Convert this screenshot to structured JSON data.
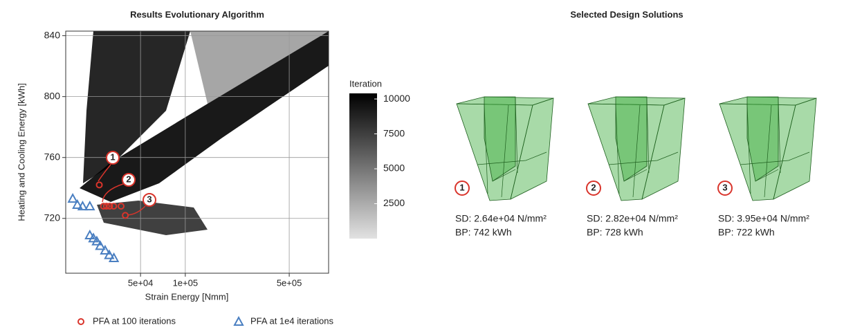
{
  "chart_data": {
    "type": "scatter",
    "title": "Results Evolutionary Algorithm",
    "x_label": "Strain Energy [Nmm]",
    "y_label": "Heating and Cooling Energy [kWh]",
    "log_x": true,
    "grid": true,
    "xlim": [
      15700,
      920000
    ],
    "xticks": [
      {
        "value": 50000,
        "label": "5e+04"
      },
      {
        "value": 100000,
        "label": "1e+05"
      },
      {
        "value": 500000,
        "label": "5e+05"
      }
    ],
    "ylim": [
      684,
      843
    ],
    "yticks": [
      720,
      760,
      800,
      840
    ],
    "series": [
      {
        "name": "PFA at 100 iterations",
        "color": "#d9342b",
        "marker": "circle",
        "x": [
          26400,
          28200,
          29500,
          31000,
          33000,
          37000,
          39500
        ],
        "values": [
          742,
          728,
          728,
          728,
          728,
          728,
          722
        ]
      },
      {
        "name": "PFA at 1e4 iterations",
        "color": "#4a7fc1",
        "marker": "triangle",
        "x": [
          17500,
          18800,
          20400,
          22800,
          22800,
          24100,
          25400,
          26800,
          28900,
          30800,
          33100
        ],
        "values": [
          733,
          729,
          728,
          728,
          709,
          707,
          705,
          702,
          699,
          696,
          694
        ]
      }
    ],
    "annotations": [
      "1",
      "2",
      "3"
    ],
    "colorbar": {
      "title": "Iteration",
      "lim": [
        0,
        10400
      ],
      "ticks": [
        2500,
        5000,
        7500,
        10000
      ],
      "colors": [
        "#e2e2e2",
        "#000000"
      ]
    }
  },
  "designs": {
    "title": "Selected Design Solutions",
    "items": [
      {
        "label": "1",
        "sd": "SD: 2.64e+04 N/mm²",
        "bp": "BP: 742 kWh"
      },
      {
        "label": "2",
        "sd": "SD: 2.82e+04 N/mm²",
        "bp": "BP: 728 kWh"
      },
      {
        "label": "3",
        "sd": "SD: 3.95e+04 N/mm²",
        "bp": "BP: 722 kWh"
      }
    ]
  }
}
